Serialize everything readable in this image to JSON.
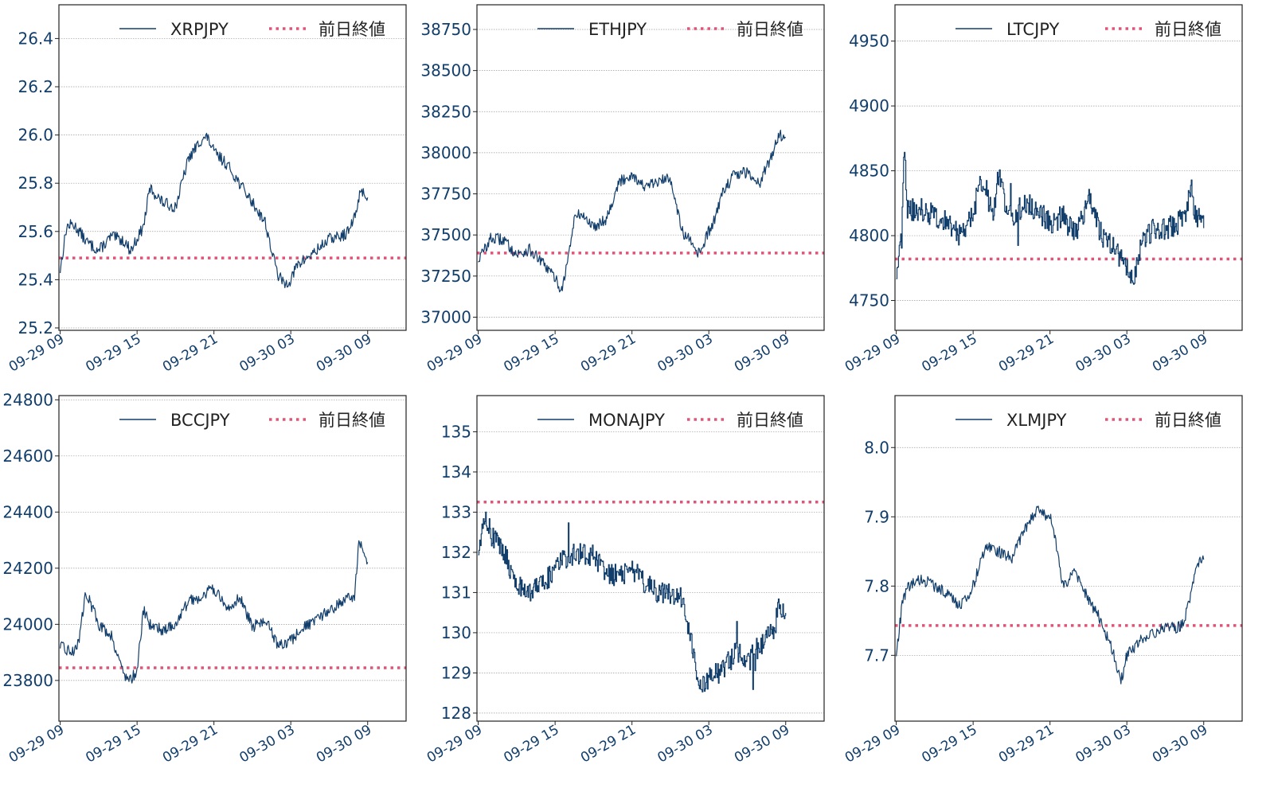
{
  "colors": {
    "series": "#123e6b",
    "reference": "#e05577",
    "tick_text": "#123e6b",
    "grid": "#9a9a9a",
    "frame": "#222222"
  },
  "x_ticks": [
    "09-29 09",
    "09-29 15",
    "09-29 21",
    "09-30 03",
    "09-30 09"
  ],
  "x_ticks_hours": [
    0,
    6,
    12,
    18,
    24
  ],
  "x_range_hours": [
    -0.1,
    27
  ],
  "data_end_hours": 24,
  "chart_data": [
    {
      "type": "line",
      "legend": {
        "series": "XRPJPY",
        "reference": "前日終値",
        "placement": "top-right"
      },
      "ylim": [
        25.19,
        26.54
      ],
      "yticks": [
        25.2,
        25.4,
        25.6,
        25.8,
        26.0,
        26.2,
        26.4
      ],
      "reference_value": 25.49,
      "series": [
        {
          "name": "XRPJPY",
          "step": "smooth",
          "points": [
            [
              0,
              25.44
            ],
            [
              0.5,
              25.62
            ],
            [
              1,
              25.63
            ],
            [
              1.5,
              25.6
            ],
            [
              2,
              25.56
            ],
            [
              2.5,
              25.54
            ],
            [
              3,
              25.52
            ],
            [
              3.5,
              25.55
            ],
            [
              4,
              25.58
            ],
            [
              4.5,
              25.57
            ],
            [
              5,
              25.56
            ],
            [
              5.5,
              25.52
            ],
            [
              6,
              25.57
            ],
            [
              6.5,
              25.62
            ],
            [
              7,
              25.78
            ],
            [
              8,
              25.72
            ],
            [
              9,
              25.7
            ],
            [
              10,
              25.9
            ],
            [
              11,
              25.98
            ],
            [
              11.5,
              25.99
            ],
            [
              12,
              25.93
            ],
            [
              13,
              25.88
            ],
            [
              14,
              25.8
            ],
            [
              15,
              25.72
            ],
            [
              16,
              25.64
            ],
            [
              16.5,
              25.52
            ],
            [
              17,
              25.42
            ],
            [
              17.5,
              25.38
            ],
            [
              18,
              25.4
            ],
            [
              18.5,
              25.46
            ],
            [
              19,
              25.48
            ],
            [
              20,
              25.52
            ],
            [
              21,
              25.57
            ],
            [
              22,
              25.58
            ],
            [
              22.5,
              25.6
            ],
            [
              23,
              25.66
            ],
            [
              23.5,
              25.78
            ],
            [
              24,
              25.73
            ]
          ]
        }
      ]
    },
    {
      "type": "line",
      "legend": {
        "series": "ETHJPY",
        "reference": "前日終値",
        "placement": "top-right"
      },
      "ylim": [
        36920,
        38900
      ],
      "yticks": [
        37000,
        37250,
        37500,
        37750,
        38000,
        38250,
        38500,
        38750
      ],
      "reference_value": 37390,
      "series": [
        {
          "name": "ETHJPY",
          "step": "smooth",
          "points": [
            [
              0,
              37350
            ],
            [
              1,
              37480
            ],
            [
              2,
              37470
            ],
            [
              3,
              37380
            ],
            [
              4,
              37410
            ],
            [
              5,
              37330
            ],
            [
              6,
              37240
            ],
            [
              6.5,
              37160
            ],
            [
              7,
              37350
            ],
            [
              7.5,
              37600
            ],
            [
              8,
              37630
            ],
            [
              9,
              37550
            ],
            [
              10,
              37600
            ],
            [
              11,
              37820
            ],
            [
              12,
              37870
            ],
            [
              13,
              37790
            ],
            [
              14,
              37820
            ],
            [
              15,
              37850
            ],
            [
              16,
              37500
            ],
            [
              16.5,
              37470
            ],
            [
              17,
              37380
            ],
            [
              17.5,
              37420
            ],
            [
              18,
              37520
            ],
            [
              18.5,
              37600
            ],
            [
              19,
              37750
            ],
            [
              20,
              37870
            ],
            [
              21,
              37880
            ],
            [
              22,
              37820
            ],
            [
              23,
              38000
            ],
            [
              23.5,
              38120
            ],
            [
              24,
              38080
            ]
          ]
        }
      ]
    },
    {
      "type": "line",
      "legend": {
        "series": "LTCJPY",
        "reference": "前日終値",
        "placement": "top-right"
      },
      "ylim": [
        4727,
        4978
      ],
      "yticks": [
        4750,
        4800,
        4850,
        4900,
        4950
      ],
      "reference_value": 4782,
      "series": [
        {
          "name": "LTCJPY",
          "step": "step",
          "points": [
            [
              0,
              4770
            ],
            [
              0.4,
              4800
            ],
            [
              0.6,
              4880
            ],
            [
              0.8,
              4820
            ],
            [
              2,
              4820
            ],
            [
              3,
              4815
            ],
            [
              4,
              4810
            ],
            [
              5,
              4800
            ],
            [
              6,
              4815
            ],
            [
              6.5,
              4845
            ],
            [
              7,
              4835
            ],
            [
              7.5,
              4815
            ],
            [
              8,
              4850
            ],
            [
              8.5,
              4820
            ],
            [
              9,
              4815
            ],
            [
              10,
              4825
            ],
            [
              11,
              4820
            ],
            [
              12,
              4810
            ],
            [
              13,
              4815
            ],
            [
              14,
              4800
            ],
            [
              15,
              4830
            ],
            [
              16,
              4800
            ],
            [
              17,
              4790
            ],
            [
              18,
              4775
            ],
            [
              18.5,
              4760
            ],
            [
              19,
              4790
            ],
            [
              19.5,
              4800
            ],
            [
              20,
              4805
            ],
            [
              21,
              4805
            ],
            [
              22,
              4810
            ],
            [
              22.5,
              4815
            ],
            [
              23,
              4840
            ],
            [
              23.3,
              4815
            ],
            [
              24,
              4813
            ]
          ]
        }
      ]
    },
    {
      "type": "line",
      "legend": {
        "series": "BCCJPY",
        "reference": "前日終値",
        "placement": "top-right"
      },
      "ylim": [
        23655,
        24815
      ],
      "yticks": [
        23800,
        24000,
        24200,
        24400,
        24600,
        24800
      ],
      "reference_value": 23845,
      "series": [
        {
          "name": "BCCJPY",
          "step": "smooth",
          "points": [
            [
              0,
              23920
            ],
            [
              1,
              23900
            ],
            [
              1.5,
              23950
            ],
            [
              2,
              24120
            ],
            [
              3,
              24000
            ],
            [
              4,
              23960
            ],
            [
              5,
              23820
            ],
            [
              5.5,
              23800
            ],
            [
              6,
              23840
            ],
            [
              6.5,
              24050
            ],
            [
              7,
              24000
            ],
            [
              8,
              23980
            ],
            [
              9,
              24000
            ],
            [
              10,
              24080
            ],
            [
              11,
              24100
            ],
            [
              12,
              24130
            ],
            [
              13,
              24050
            ],
            [
              14,
              24100
            ],
            [
              15,
              23990
            ],
            [
              16,
              24020
            ],
            [
              17,
              23920
            ],
            [
              18,
              23940
            ],
            [
              19,
              23990
            ],
            [
              20,
              24010
            ],
            [
              21,
              24050
            ],
            [
              22,
              24080
            ],
            [
              23,
              24100
            ],
            [
              23.3,
              24300
            ],
            [
              24,
              24220
            ]
          ]
        }
      ]
    },
    {
      "type": "line",
      "legend": {
        "series": "MONAJPY",
        "reference": "前日終値",
        "placement": "top-right"
      },
      "ylim": [
        127.8,
        135.9
      ],
      "yticks": [
        128,
        129,
        130,
        131,
        132,
        133,
        134,
        135
      ],
      "reference_value": 133.25,
      "series": [
        {
          "name": "MONAJPY",
          "step": "step",
          "points": [
            [
              0,
              132.0
            ],
            [
              0.5,
              133.0
            ],
            [
              1,
              132.4
            ],
            [
              2,
              132.0
            ],
            [
              3,
              131.2
            ],
            [
              4,
              131.0
            ],
            [
              5,
              131.2
            ],
            [
              6,
              131.6
            ],
            [
              7,
              131.9
            ],
            [
              8,
              132.0
            ],
            [
              9,
              131.9
            ],
            [
              10,
              131.5
            ],
            [
              11,
              131.4
            ],
            [
              12,
              131.6
            ],
            [
              13,
              131.2
            ],
            [
              14,
              131.0
            ],
            [
              15,
              131.0
            ],
            [
              16,
              130.9
            ],
            [
              17,
              129.0
            ],
            [
              17.5,
              128.7
            ],
            [
              18,
              128.9
            ],
            [
              19,
              129.0
            ],
            [
              20,
              129.5
            ],
            [
              21,
              129.4
            ],
            [
              22,
              129.7
            ],
            [
              23,
              130.0
            ],
            [
              23.5,
              130.7
            ],
            [
              24,
              130.6
            ]
          ]
        }
      ]
    },
    {
      "type": "line",
      "legend": {
        "series": "XLMJPY",
        "reference": "前日終値",
        "placement": "top-right"
      },
      "ylim": [
        7.605,
        8.075
      ],
      "yticks": [
        7.7,
        7.8,
        7.9,
        8.0
      ],
      "reference_value": 7.743,
      "series": [
        {
          "name": "XLMJPY",
          "step": "smooth",
          "points": [
            [
              0,
              7.7
            ],
            [
              0.5,
              7.78
            ],
            [
              1,
              7.8
            ],
            [
              2,
              7.81
            ],
            [
              3,
              7.8
            ],
            [
              4,
              7.79
            ],
            [
              5,
              7.77
            ],
            [
              6,
              7.8
            ],
            [
              7,
              7.86
            ],
            [
              8,
              7.85
            ],
            [
              9,
              7.84
            ],
            [
              10,
              7.88
            ],
            [
              11,
              7.91
            ],
            [
              12,
              7.9
            ],
            [
              12.5,
              7.86
            ],
            [
              13,
              7.8
            ],
            [
              14,
              7.82
            ],
            [
              15,
              7.78
            ],
            [
              16,
              7.75
            ],
            [
              17,
              7.7
            ],
            [
              17.5,
              7.66
            ],
            [
              18,
              7.7
            ],
            [
              19,
              7.72
            ],
            [
              20,
              7.73
            ],
            [
              21,
              7.74
            ],
            [
              22,
              7.74
            ],
            [
              22.5,
              7.75
            ],
            [
              23,
              7.79
            ],
            [
              23.5,
              7.83
            ],
            [
              24,
              7.84
            ]
          ]
        }
      ]
    }
  ]
}
